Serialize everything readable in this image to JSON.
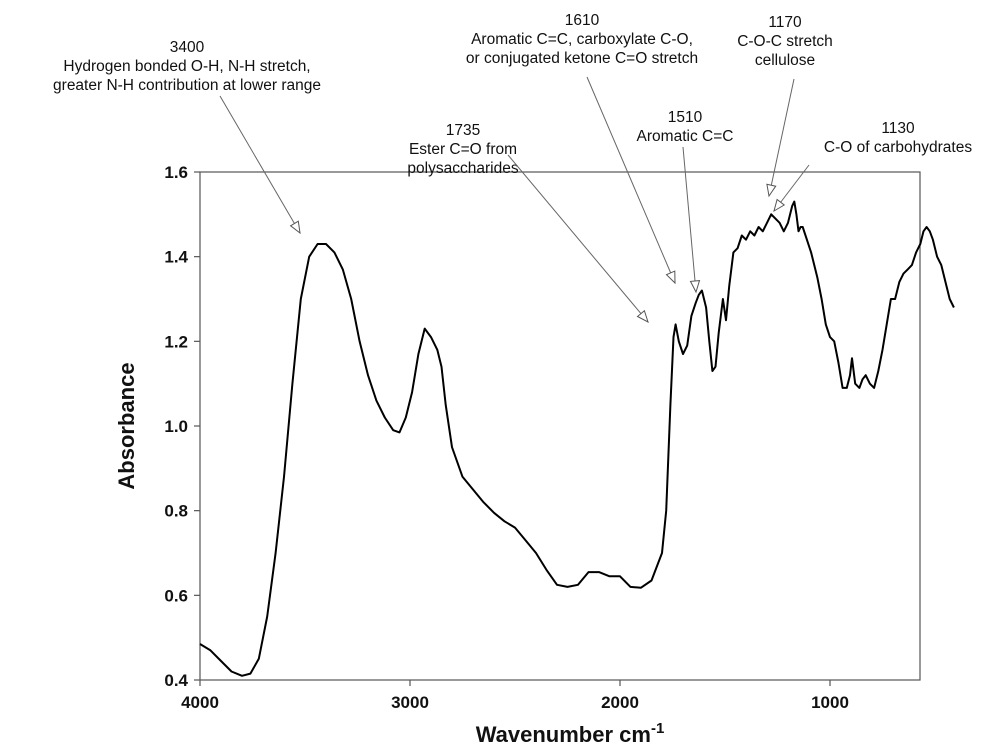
{
  "chart_data": {
    "type": "line",
    "xlabel": "Wavenumber cm",
    "xlabel_superscript": "-1",
    "ylabel": "Absorbance",
    "xlim": [
      4000,
      400
    ],
    "ylim": [
      0.4,
      1.6
    ],
    "x_reversed": true,
    "grid": false,
    "legend": "none",
    "x_ticks": [
      {
        "value": 4000,
        "label": "4000"
      },
      {
        "value": 3000,
        "label": "3000"
      },
      {
        "value": 2000,
        "label": "2000"
      },
      {
        "value": 1000,
        "label": "1000"
      }
    ],
    "y_ticks": [
      {
        "value": 0.4,
        "label": "0.4"
      },
      {
        "value": 0.6,
        "label": "0.6"
      },
      {
        "value": 0.8,
        "label": "0.8"
      },
      {
        "value": 1.0,
        "label": "1.0"
      },
      {
        "value": 1.2,
        "label": "1.2"
      },
      {
        "value": 1.4,
        "label": "1.4"
      },
      {
        "value": 1.6,
        "label": "1.6"
      }
    ],
    "series": [
      {
        "color": "#000000",
        "points": [
          [
            4000,
            0.485
          ],
          [
            3950,
            0.47
          ],
          [
            3900,
            0.445
          ],
          [
            3850,
            0.42
          ],
          [
            3800,
            0.41
          ],
          [
            3760,
            0.415
          ],
          [
            3720,
            0.45
          ],
          [
            3680,
            0.55
          ],
          [
            3640,
            0.7
          ],
          [
            3600,
            0.88
          ],
          [
            3560,
            1.1
          ],
          [
            3520,
            1.3
          ],
          [
            3480,
            1.4
          ],
          [
            3440,
            1.43
          ],
          [
            3400,
            1.43
          ],
          [
            3360,
            1.41
          ],
          [
            3320,
            1.37
          ],
          [
            3280,
            1.3
          ],
          [
            3240,
            1.2
          ],
          [
            3200,
            1.12
          ],
          [
            3160,
            1.06
          ],
          [
            3120,
            1.02
          ],
          [
            3080,
            0.99
          ],
          [
            3050,
            0.985
          ],
          [
            3020,
            1.02
          ],
          [
            2990,
            1.08
          ],
          [
            2960,
            1.17
          ],
          [
            2930,
            1.23
          ],
          [
            2900,
            1.21
          ],
          [
            2870,
            1.18
          ],
          [
            2850,
            1.14
          ],
          [
            2830,
            1.05
          ],
          [
            2800,
            0.95
          ],
          [
            2750,
            0.88
          ],
          [
            2700,
            0.85
          ],
          [
            2650,
            0.82
          ],
          [
            2600,
            0.795
          ],
          [
            2550,
            0.775
          ],
          [
            2500,
            0.76
          ],
          [
            2450,
            0.73
          ],
          [
            2400,
            0.7
          ],
          [
            2350,
            0.66
          ],
          [
            2300,
            0.625
          ],
          [
            2250,
            0.62
          ],
          [
            2200,
            0.625
          ],
          [
            2150,
            0.655
          ],
          [
            2100,
            0.655
          ],
          [
            2050,
            0.645
          ],
          [
            2000,
            0.645
          ],
          [
            1950,
            0.62
          ],
          [
            1900,
            0.618
          ],
          [
            1850,
            0.635
          ],
          [
            1800,
            0.7
          ],
          [
            1780,
            0.8
          ],
          [
            1760,
            1.05
          ],
          [
            1745,
            1.21
          ],
          [
            1735,
            1.24
          ],
          [
            1720,
            1.2
          ],
          [
            1700,
            1.17
          ],
          [
            1680,
            1.19
          ],
          [
            1660,
            1.26
          ],
          [
            1640,
            1.29
          ],
          [
            1625,
            1.31
          ],
          [
            1610,
            1.32
          ],
          [
            1590,
            1.28
          ],
          [
            1575,
            1.2
          ],
          [
            1560,
            1.13
          ],
          [
            1545,
            1.14
          ],
          [
            1530,
            1.22
          ],
          [
            1510,
            1.3
          ],
          [
            1495,
            1.25
          ],
          [
            1480,
            1.33
          ],
          [
            1460,
            1.41
          ],
          [
            1440,
            1.42
          ],
          [
            1420,
            1.45
          ],
          [
            1400,
            1.44
          ],
          [
            1380,
            1.46
          ],
          [
            1360,
            1.45
          ],
          [
            1340,
            1.47
          ],
          [
            1320,
            1.46
          ],
          [
            1300,
            1.48
          ],
          [
            1280,
            1.5
          ],
          [
            1260,
            1.49
          ],
          [
            1240,
            1.48
          ],
          [
            1220,
            1.46
          ],
          [
            1200,
            1.48
          ],
          [
            1180,
            1.52
          ],
          [
            1170,
            1.53
          ],
          [
            1160,
            1.5
          ],
          [
            1150,
            1.46
          ],
          [
            1140,
            1.47
          ],
          [
            1130,
            1.47
          ],
          [
            1110,
            1.44
          ],
          [
            1090,
            1.41
          ],
          [
            1060,
            1.35
          ],
          [
            1040,
            1.3
          ],
          [
            1020,
            1.24
          ],
          [
            1000,
            1.21
          ],
          [
            980,
            1.2
          ],
          [
            960,
            1.15
          ],
          [
            940,
            1.09
          ],
          [
            920,
            1.09
          ],
          [
            905,
            1.12
          ],
          [
            895,
            1.16
          ],
          [
            880,
            1.1
          ],
          [
            860,
            1.09
          ],
          [
            845,
            1.11
          ],
          [
            830,
            1.12
          ],
          [
            810,
            1.1
          ],
          [
            790,
            1.09
          ],
          [
            770,
            1.13
          ],
          [
            750,
            1.18
          ],
          [
            730,
            1.24
          ],
          [
            710,
            1.3
          ],
          [
            690,
            1.3
          ],
          [
            670,
            1.34
          ],
          [
            650,
            1.36
          ],
          [
            630,
            1.37
          ],
          [
            610,
            1.38
          ],
          [
            590,
            1.41
          ],
          [
            570,
            1.43
          ],
          [
            555,
            1.46
          ],
          [
            540,
            1.47
          ],
          [
            525,
            1.46
          ],
          [
            510,
            1.44
          ],
          [
            490,
            1.4
          ],
          [
            470,
            1.38
          ],
          [
            450,
            1.34
          ],
          [
            430,
            1.3
          ],
          [
            410,
            1.28
          ]
        ]
      }
    ],
    "annotations": [
      {
        "peak": 3400,
        "lines": [
          "3400",
          "Hydrogen bonded O-H, N-H stretch,",
          "greater N-H contribution at lower range"
        ]
      },
      {
        "peak": 1735,
        "lines": [
          "1735",
          "Ester C=O from",
          "polysaccharides"
        ]
      },
      {
        "peak": 1610,
        "lines": [
          "1610",
          "Aromatic C=C, carboxylate C-O,",
          "or conjugated ketone C=O stretch"
        ]
      },
      {
        "peak": 1510,
        "lines": [
          "1510",
          "Aromatic C=C"
        ]
      },
      {
        "peak": 1170,
        "lines": [
          "1170",
          "C-O-C stretch",
          "cellulose"
        ]
      },
      {
        "peak": 1130,
        "lines": [
          "1130",
          "C-O of carbohydrates"
        ]
      }
    ]
  }
}
